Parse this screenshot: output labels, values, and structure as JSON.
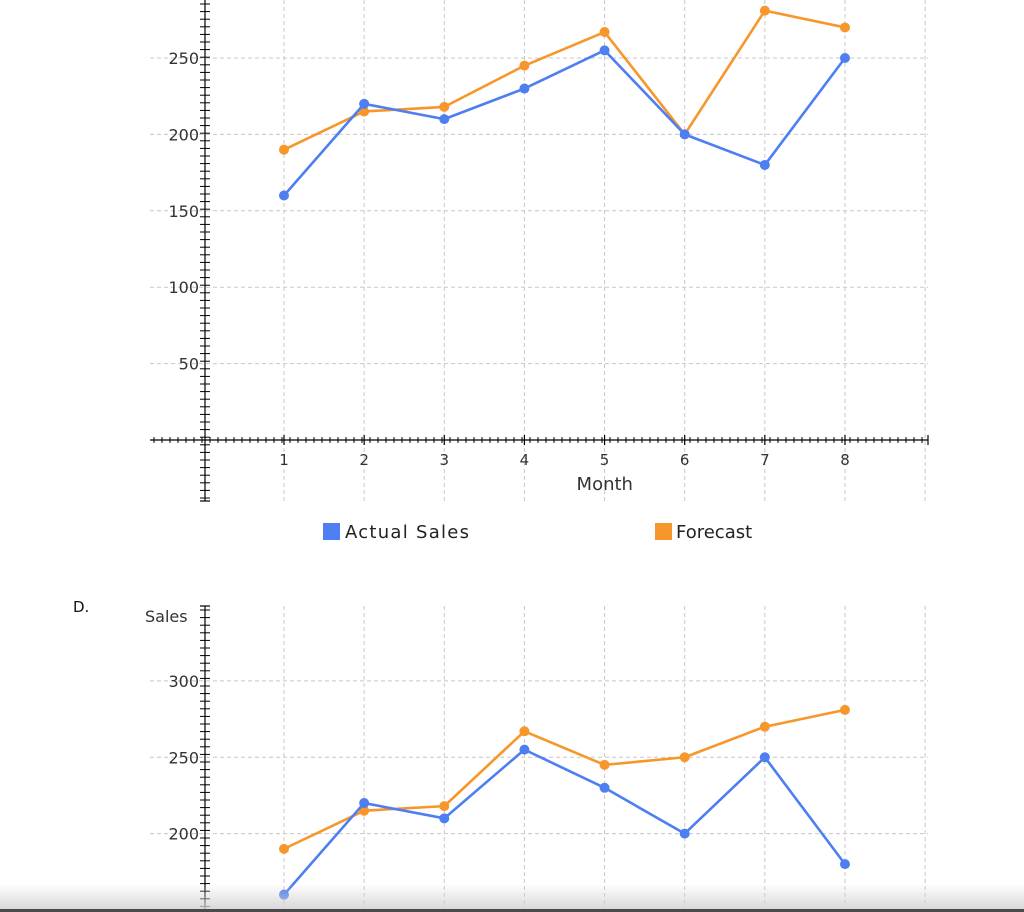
{
  "option_label": "D.",
  "colors": {
    "actual": "#4d7ef2",
    "forecast": "#f7962a",
    "grid": "#c8c8c8",
    "axis": "#000000"
  },
  "chart_data": [
    {
      "type": "line",
      "x": [
        1,
        2,
        3,
        4,
        5,
        6,
        7,
        8
      ],
      "series": [
        {
          "name": "Actual Sales",
          "values": [
            160,
            220,
            210,
            230,
            255,
            200,
            180,
            250
          ]
        },
        {
          "name": "Forecast",
          "values": [
            190,
            215,
            218,
            245,
            267,
            200,
            281,
            270
          ]
        }
      ],
      "xlabel": "Month",
      "ylabel": "",
      "xticks": [
        "1",
        "2",
        "3",
        "4",
        "5",
        "6",
        "7",
        "8"
      ],
      "yticks": [
        "50",
        "100",
        "150",
        "200",
        "250"
      ],
      "grid": true,
      "legend": "bottom"
    },
    {
      "type": "line",
      "x": [
        1,
        2,
        3,
        4,
        5,
        6,
        7,
        8
      ],
      "series": [
        {
          "name": "Actual Sales",
          "values": [
            160,
            220,
            210,
            255,
            230,
            200,
            250,
            180
          ]
        },
        {
          "name": "Forecast",
          "values": [
            190,
            215,
            218,
            267,
            245,
            250,
            270,
            281
          ]
        }
      ],
      "xlabel": "",
      "ylabel": "Sales",
      "yticks": [
        "200",
        "250",
        "300"
      ],
      "grid": true
    }
  ]
}
